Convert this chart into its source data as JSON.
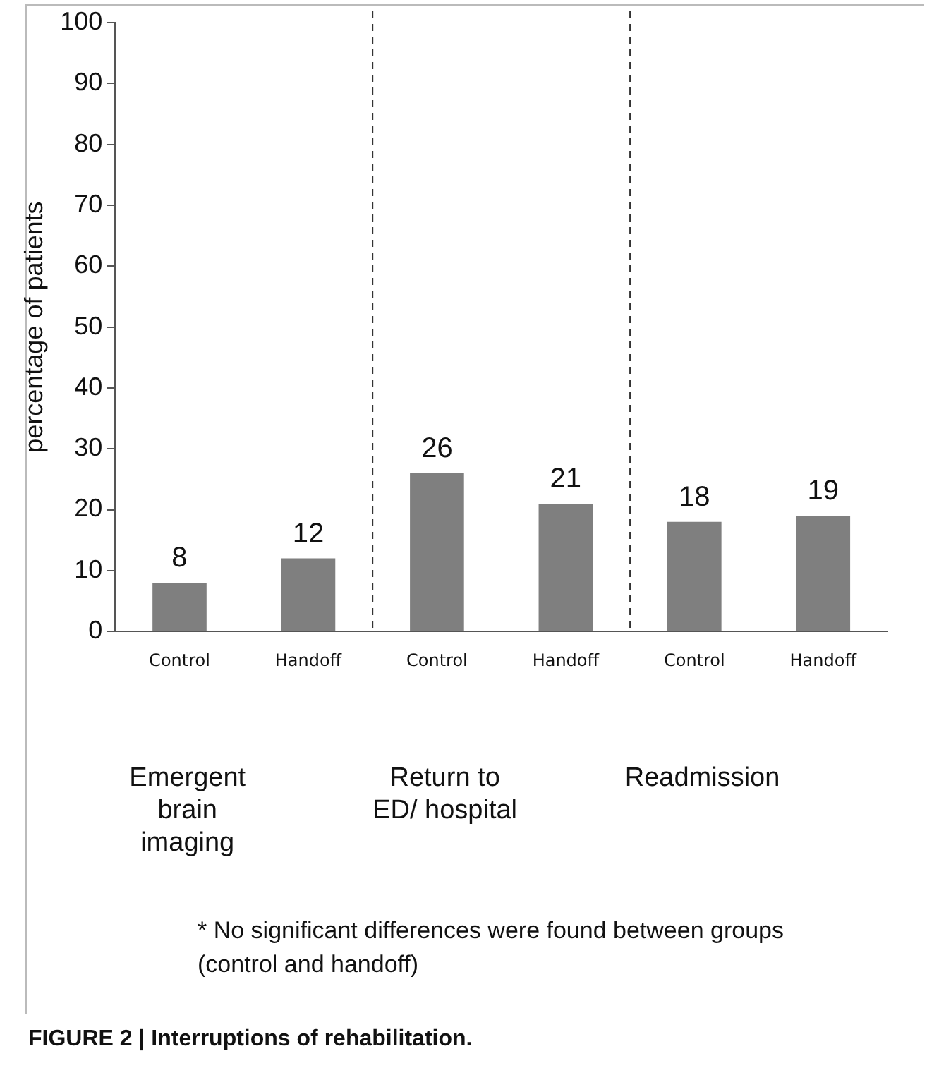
{
  "chart_data": {
    "type": "bar",
    "title": "FIGURE 2 | Interruptions of rehabilitation.",
    "ylabel": "percentage of patients",
    "categories": [
      "Control",
      "Handoff",
      "Control",
      "Handoff",
      "Control",
      "Handoff"
    ],
    "values": [
      8,
      12,
      26,
      21,
      18,
      19
    ],
    "color": "#7f7f7f",
    "ylim": [
      0,
      100
    ],
    "yticks": [
      0,
      10,
      20,
      30,
      40,
      50,
      60,
      70,
      80,
      90,
      100
    ],
    "grid": false,
    "legend": false,
    "data_labels": true,
    "annotations": [
      "Emergent brain imaging",
      "Return to ED/ hospital",
      "Readmission",
      "* No significant differences were found between groups (control and handoff)"
    ]
  }
}
